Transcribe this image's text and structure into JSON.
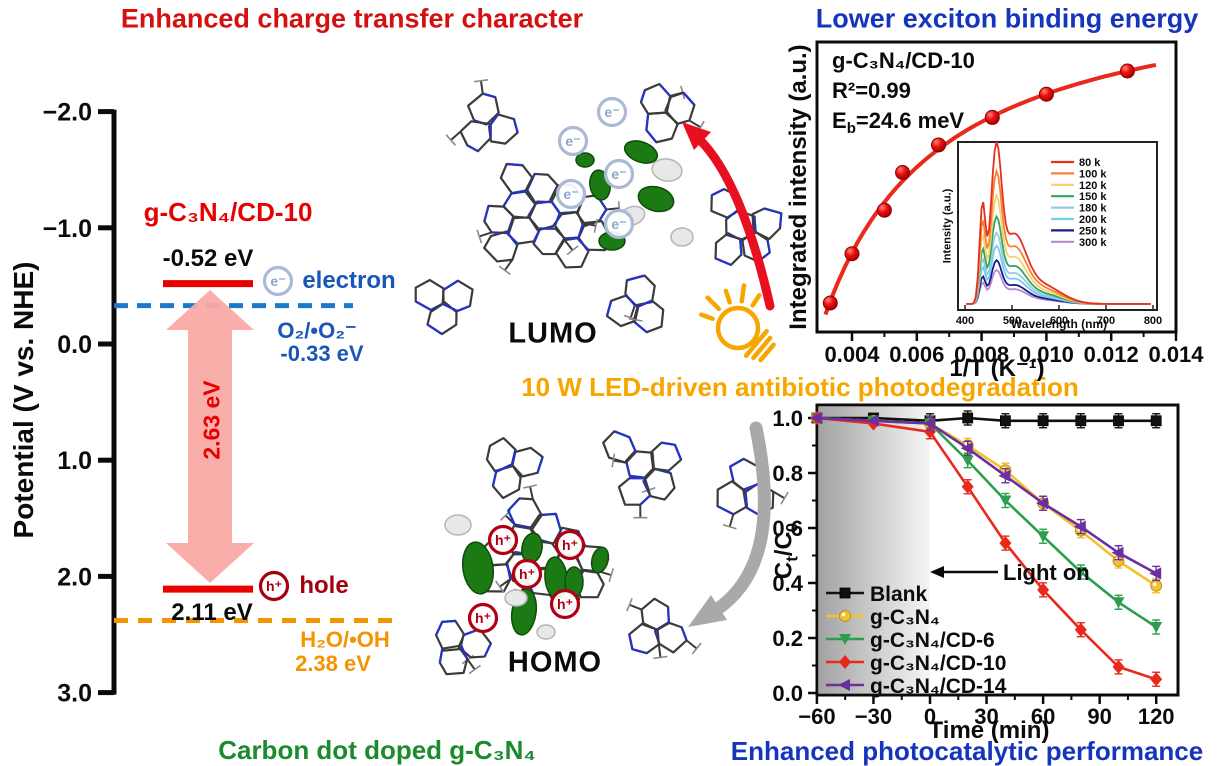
{
  "titles": {
    "top_left": "Enhanced charge transfer character",
    "top_right": "Lower exciton binding energy",
    "center": "10 W LED-driven antibiotic photodegradation",
    "bottom_left": "Carbon dot doped g-C₃N₄",
    "bottom_right": "Enhanced photocatalytic performance"
  },
  "energy_diagram": {
    "axis_label": "Potential (V vs. NHE)",
    "tick_labels": [
      "−2.0",
      "−1.0",
      "0.0",
      "1.0",
      "2.0",
      "3.0"
    ],
    "tick_values": [
      -2,
      -1,
      0,
      1,
      2,
      3
    ],
    "material_label": "g-C₃N₄/CD-10",
    "cb_label": "-0.52 eV",
    "cb_value": -0.52,
    "vb_label": "2.11 eV",
    "vb_value": 2.11,
    "gap_label": "2.63 eV",
    "o2_couple": "O₂/•O₂⁻",
    "o2_level_label": "-0.33 eV",
    "o2_value": -0.33,
    "h2o_couple": "H₂O/•OH",
    "h2o_level_label": "2.38 eV",
    "h2o_value": 2.38,
    "electron_badge": "e⁻",
    "electron_label": "electron",
    "hole_badge": "h⁺",
    "hole_label": "hole"
  },
  "molecules": {
    "lumo_label": "LUMO",
    "homo_label": "HOMO",
    "electron_badge": "e⁻",
    "hole_badge": "h⁺"
  },
  "chart_data": [
    {
      "id": "exciton_binding_plot",
      "type": "scatter",
      "xlabel": "1/T (K⁻¹)",
      "ylabel": "Integrated intensity (a.u.)",
      "x_tick_labels": [
        "0.004",
        "0.006",
        "0.008",
        "0.010",
        "0.012",
        "0.014"
      ],
      "x_tick_values": [
        0.004,
        0.006,
        0.008,
        0.01,
        0.012,
        0.014
      ],
      "xlim": [
        0.003,
        0.0145
      ],
      "points_x": [
        0.00333,
        0.004,
        0.005,
        0.00556,
        0.00667,
        0.00833,
        0.01,
        0.0125
      ],
      "points_y_rel": [
        0.1,
        0.27,
        0.42,
        0.55,
        0.645,
        0.74,
        0.82,
        0.9
      ],
      "fit_note": "saturating red fit curve, R2=0.99",
      "annotations": {
        "material": "g-C₃N₄/CD-10",
        "r2": "R²=0.99",
        "eb_prefix": "E",
        "eb_sub": "b",
        "eb_rest": "=24.6 meV"
      }
    },
    {
      "id": "pl_temperature_inset",
      "type": "line",
      "xlabel": "Wavelength (nm)",
      "ylabel": "Intensity (a.u.)",
      "x_tick_labels": [
        "400",
        "500",
        "600",
        "700",
        "800"
      ],
      "x_tick_values": [
        400,
        500,
        600,
        700,
        800
      ],
      "peak_nm": 466,
      "shoulder_nm": 437,
      "series": [
        {
          "name": "80 k",
          "color": "#e6301f",
          "peak_rel": 1.0
        },
        {
          "name": "100 k",
          "color": "#f58231",
          "peak_rel": 0.82
        },
        {
          "name": "120 k",
          "color": "#f8cf6e",
          "peak_rel": 0.67
        },
        {
          "name": "150 k",
          "color": "#2fa85c",
          "peak_rel": 0.54
        },
        {
          "name": "180 k",
          "color": "#9cc8e8",
          "peak_rel": 0.44
        },
        {
          "name": "200 k",
          "color": "#72cfec",
          "peak_rel": 0.36
        },
        {
          "name": "250 k",
          "color": "#1b1b8a",
          "peak_rel": 0.27
        },
        {
          "name": "300 k",
          "color": "#b48cd2",
          "peak_rel": 0.21
        }
      ]
    },
    {
      "id": "photodegradation_plot",
      "type": "line",
      "xlabel": "Time (min)",
      "ylabel_parts": {
        "c1": "C",
        "s1": "t",
        "c2": "/C",
        "s2": "0"
      },
      "x_tick_labels": [
        "−60",
        "−30",
        "0",
        "30",
        "60",
        "90",
        "120"
      ],
      "x_tick_values": [
        -60,
        -30,
        0,
        30,
        60,
        90,
        120
      ],
      "y_tick_labels": [
        "0.0",
        "0.2",
        "0.4",
        "0.6",
        "0.8",
        "1.0"
      ],
      "y_tick_values": [
        0,
        0.2,
        0.4,
        0.6,
        0.8,
        1.0
      ],
      "x": [
        -60,
        -30,
        0,
        20,
        40,
        60,
        80,
        100,
        120
      ],
      "ylim": [
        0.0,
        1.0
      ],
      "shaded_region": [
        -60,
        0
      ],
      "light_on_label": "Light on",
      "series": [
        {
          "name": "Blank",
          "color": "#111111",
          "marker": "square",
          "values": [
            1.0,
            1.0,
            0.99,
            1.0,
            0.99,
            0.99,
            0.99,
            0.99,
            0.99
          ]
        },
        {
          "name": "g-C₃N₄",
          "color": "#f2c12e",
          "marker": "circle",
          "values": [
            1.0,
            0.99,
            0.98,
            0.9,
            0.81,
            0.69,
            0.59,
            0.48,
            0.39
          ]
        },
        {
          "name": "g-C₃N₄/CD-6",
          "color": "#2d9e50",
          "marker": "tri-down",
          "values": [
            1.0,
            0.99,
            0.98,
            0.845,
            0.7,
            0.57,
            0.44,
            0.33,
            0.24
          ]
        },
        {
          "name": "g-C₃N₄/CD-10",
          "color": "#e8291c",
          "marker": "diamond",
          "values": [
            1.0,
            0.98,
            0.95,
            0.75,
            0.545,
            0.375,
            0.23,
            0.095,
            0.05
          ]
        },
        {
          "name": "g-C₃N₄/CD-14",
          "color": "#6a2fa0",
          "marker": "tri-left",
          "values": [
            1.0,
            0.99,
            0.98,
            0.89,
            0.79,
            0.69,
            0.605,
            0.51,
            0.435
          ]
        }
      ]
    }
  ]
}
